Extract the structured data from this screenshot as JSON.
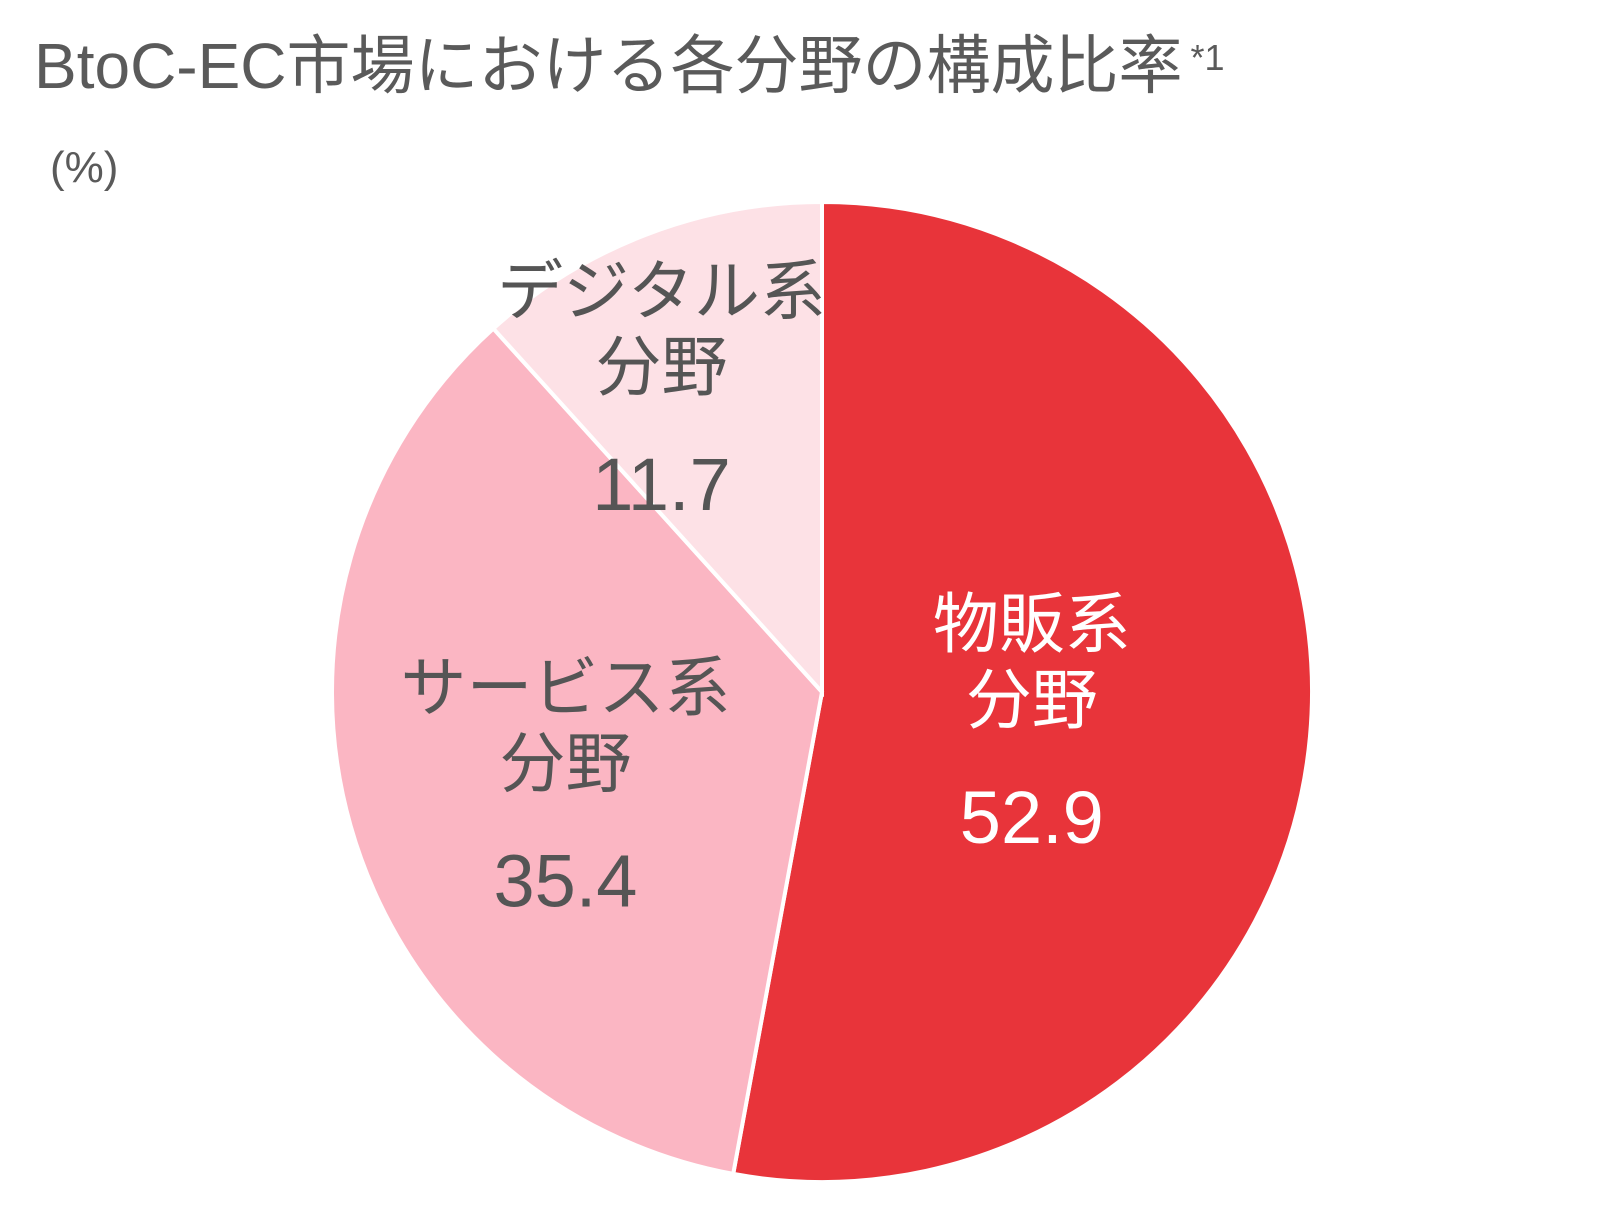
{
  "chart_data": {
    "type": "pie",
    "title": "BtoC-EC市場における各分野の構成比率",
    "title_note": "*1",
    "unit_label": "(%)",
    "slices": [
      {
        "id": "goods",
        "label_lines": [
          "物販系",
          "分野"
        ],
        "value": 52.9,
        "color": "#e8343a",
        "text_color": "#ffffff"
      },
      {
        "id": "service",
        "label_lines": [
          "サービス系",
          "分野"
        ],
        "value": 35.4,
        "color": "#fbb6c3",
        "text_color": "#555555"
      },
      {
        "id": "digital",
        "label_lines": [
          "デジタル系",
          "分野"
        ],
        "value": 11.7,
        "color": "#fde1e6",
        "text_color": "#555555"
      }
    ],
    "start_angle_deg": 0,
    "direction": "clockwise",
    "legend": "none"
  }
}
